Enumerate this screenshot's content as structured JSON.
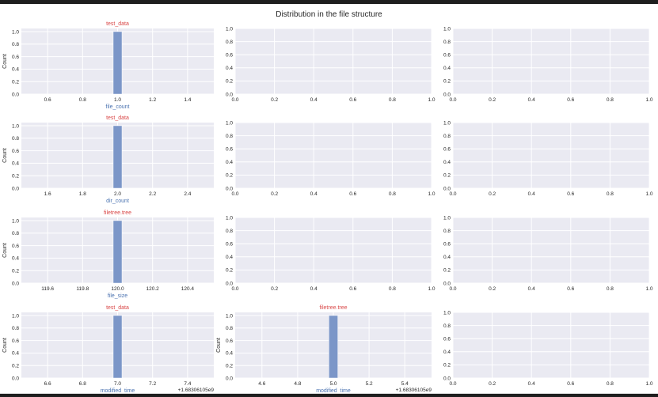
{
  "figure": {
    "title": "Distribution in the file structure"
  },
  "colors": {
    "axes_bg": "#eaeaf2",
    "grid": "#ffffff",
    "bar": "#7b96c8",
    "subplot_title": "#d94848",
    "xlabel": "#4a72b0",
    "tick_text": "#262626"
  },
  "chart_data": [
    {
      "type": "bar",
      "row": 1,
      "col": 1,
      "title": "test_data",
      "xlabel": "file_count",
      "ylabel": "Count",
      "bins": [
        {
          "x0": 0.975,
          "x1": 1.025,
          "count": 1
        }
      ],
      "xlim": [
        0.45,
        1.55
      ],
      "ylim": [
        0,
        1.05
      ],
      "xticks": [
        "0.6",
        "0.8",
        "1.0",
        "1.2",
        "1.4"
      ],
      "xtick_values": [
        0.6,
        0.8,
        1.0,
        1.2,
        1.4
      ],
      "yticks": [
        "0.0",
        "0.2",
        "0.4",
        "0.6",
        "0.8",
        "1.0"
      ],
      "ytick_values": [
        0,
        0.2,
        0.4,
        0.6,
        0.8,
        1.0
      ],
      "offset_text": ""
    },
    {
      "type": "empty",
      "row": 1,
      "col": 2,
      "title": "",
      "xlabel": "",
      "ylabel": "",
      "bins": [],
      "xlim": [
        0,
        1
      ],
      "ylim": [
        0,
        1
      ],
      "xticks": [
        "0.0",
        "0.2",
        "0.4",
        "0.6",
        "0.8",
        "1.0"
      ],
      "xtick_values": [
        0,
        0.2,
        0.4,
        0.6,
        0.8,
        1.0
      ],
      "yticks": [
        "0.0",
        "0.2",
        "0.4",
        "0.6",
        "0.8",
        "1.0"
      ],
      "ytick_values": [
        0,
        0.2,
        0.4,
        0.6,
        0.8,
        1.0
      ],
      "offset_text": ""
    },
    {
      "type": "empty",
      "row": 1,
      "col": 3,
      "title": "",
      "xlabel": "",
      "ylabel": "",
      "bins": [],
      "xlim": [
        0,
        1
      ],
      "ylim": [
        0,
        1
      ],
      "xticks": [
        "0.0",
        "0.2",
        "0.4",
        "0.6",
        "0.8",
        "1.0"
      ],
      "xtick_values": [
        0,
        0.2,
        0.4,
        0.6,
        0.8,
        1.0
      ],
      "yticks": [
        "0.0",
        "0.2",
        "0.4",
        "0.6",
        "0.8",
        "1.0"
      ],
      "ytick_values": [
        0,
        0.2,
        0.4,
        0.6,
        0.8,
        1.0
      ],
      "offset_text": ""
    },
    {
      "type": "bar",
      "row": 2,
      "col": 1,
      "title": "test_data",
      "xlabel": "dir_count",
      "ylabel": "Count",
      "bins": [
        {
          "x0": 1.975,
          "x1": 2.025,
          "count": 1
        }
      ],
      "xlim": [
        1.45,
        2.55
      ],
      "ylim": [
        0,
        1.05
      ],
      "xticks": [
        "1.6",
        "1.8",
        "2.0",
        "2.2",
        "2.4"
      ],
      "xtick_values": [
        1.6,
        1.8,
        2.0,
        2.2,
        2.4
      ],
      "yticks": [
        "0.0",
        "0.2",
        "0.4",
        "0.6",
        "0.8",
        "1.0"
      ],
      "ytick_values": [
        0,
        0.2,
        0.4,
        0.6,
        0.8,
        1.0
      ],
      "offset_text": ""
    },
    {
      "type": "empty",
      "row": 2,
      "col": 2,
      "title": "",
      "xlabel": "",
      "ylabel": "",
      "bins": [],
      "xlim": [
        0,
        1
      ],
      "ylim": [
        0,
        1
      ],
      "xticks": [
        "0.0",
        "0.2",
        "0.4",
        "0.6",
        "0.8",
        "1.0"
      ],
      "xtick_values": [
        0,
        0.2,
        0.4,
        0.6,
        0.8,
        1.0
      ],
      "yticks": [
        "0.0",
        "0.2",
        "0.4",
        "0.6",
        "0.8",
        "1.0"
      ],
      "ytick_values": [
        0,
        0.2,
        0.4,
        0.6,
        0.8,
        1.0
      ],
      "offset_text": ""
    },
    {
      "type": "empty",
      "row": 2,
      "col": 3,
      "title": "",
      "xlabel": "",
      "ylabel": "",
      "bins": [],
      "xlim": [
        0,
        1
      ],
      "ylim": [
        0,
        1
      ],
      "xticks": [
        "0.0",
        "0.2",
        "0.4",
        "0.6",
        "0.8",
        "1.0"
      ],
      "xtick_values": [
        0,
        0.2,
        0.4,
        0.6,
        0.8,
        1.0
      ],
      "yticks": [
        "0.0",
        "0.2",
        "0.4",
        "0.6",
        "0.8",
        "1.0"
      ],
      "ytick_values": [
        0,
        0.2,
        0.4,
        0.6,
        0.8,
        1.0
      ],
      "offset_text": ""
    },
    {
      "type": "bar",
      "row": 3,
      "col": 1,
      "title": "filetree.tree",
      "xlabel": "file_size",
      "ylabel": "Count",
      "bins": [
        {
          "x0": 119.975,
          "x1": 120.025,
          "count": 1
        }
      ],
      "xlim": [
        119.45,
        120.55
      ],
      "ylim": [
        0,
        1.05
      ],
      "xticks": [
        "119.6",
        "119.8",
        "120.0",
        "120.2",
        "120.4"
      ],
      "xtick_values": [
        119.6,
        119.8,
        120.0,
        120.2,
        120.4
      ],
      "yticks": [
        "0.0",
        "0.2",
        "0.4",
        "0.6",
        "0.8",
        "1.0"
      ],
      "ytick_values": [
        0,
        0.2,
        0.4,
        0.6,
        0.8,
        1.0
      ],
      "offset_text": ""
    },
    {
      "type": "empty",
      "row": 3,
      "col": 2,
      "title": "",
      "xlabel": "",
      "ylabel": "",
      "bins": [],
      "xlim": [
        0,
        1
      ],
      "ylim": [
        0,
        1
      ],
      "xticks": [
        "0.0",
        "0.2",
        "0.4",
        "0.6",
        "0.8",
        "1.0"
      ],
      "xtick_values": [
        0,
        0.2,
        0.4,
        0.6,
        0.8,
        1.0
      ],
      "yticks": [
        "0.0",
        "0.2",
        "0.4",
        "0.6",
        "0.8",
        "1.0"
      ],
      "ytick_values": [
        0,
        0.2,
        0.4,
        0.6,
        0.8,
        1.0
      ],
      "offset_text": ""
    },
    {
      "type": "empty",
      "row": 3,
      "col": 3,
      "title": "",
      "xlabel": "",
      "ylabel": "",
      "bins": [],
      "xlim": [
        0,
        1
      ],
      "ylim": [
        0,
        1
      ],
      "xticks": [
        "0.0",
        "0.2",
        "0.4",
        "0.6",
        "0.8",
        "1.0"
      ],
      "xtick_values": [
        0,
        0.2,
        0.4,
        0.6,
        0.8,
        1.0
      ],
      "yticks": [
        "0.0",
        "0.2",
        "0.4",
        "0.6",
        "0.8",
        "1.0"
      ],
      "ytick_values": [
        0,
        0.2,
        0.4,
        0.6,
        0.8,
        1.0
      ],
      "offset_text": ""
    },
    {
      "type": "bar",
      "row": 4,
      "col": 1,
      "title": "test_data",
      "xlabel": "modified_time",
      "ylabel": "Count",
      "bins": [
        {
          "x0": 6.975,
          "x1": 7.025,
          "count": 1
        }
      ],
      "xlim": [
        6.45,
        7.55
      ],
      "ylim": [
        0,
        1.05
      ],
      "xticks": [
        "6.6",
        "6.8",
        "7.0",
        "7.2",
        "7.4"
      ],
      "xtick_values": [
        6.6,
        6.8,
        7.0,
        7.2,
        7.4
      ],
      "yticks": [
        "0.0",
        "0.2",
        "0.4",
        "0.6",
        "0.8",
        "1.0"
      ],
      "ytick_values": [
        0,
        0.2,
        0.4,
        0.6,
        0.8,
        1.0
      ],
      "offset_text": "+1.68306105e9"
    },
    {
      "type": "bar",
      "row": 4,
      "col": 2,
      "title": "filetree.tree",
      "xlabel": "modified_time",
      "ylabel": "Count",
      "bins": [
        {
          "x0": 4.975,
          "x1": 5.025,
          "count": 1
        }
      ],
      "xlim": [
        4.45,
        5.55
      ],
      "ylim": [
        0,
        1.05
      ],
      "xticks": [
        "4.6",
        "4.8",
        "5.0",
        "5.2",
        "5.4"
      ],
      "xtick_values": [
        4.6,
        4.8,
        5.0,
        5.2,
        5.4
      ],
      "yticks": [
        "0.0",
        "0.2",
        "0.4",
        "0.6",
        "0.8",
        "1.0"
      ],
      "ytick_values": [
        0,
        0.2,
        0.4,
        0.6,
        0.8,
        1.0
      ],
      "offset_text": "+1.68306105e9"
    },
    {
      "type": "empty",
      "row": 4,
      "col": 3,
      "title": "",
      "xlabel": "",
      "ylabel": "",
      "bins": [],
      "xlim": [
        0,
        1
      ],
      "ylim": [
        0,
        1
      ],
      "xticks": [
        "0.0",
        "0.2",
        "0.4",
        "0.6",
        "0.8",
        "1.0"
      ],
      "xtick_values": [
        0,
        0.2,
        0.4,
        0.6,
        0.8,
        1.0
      ],
      "yticks": [
        "0.0",
        "0.2",
        "0.4",
        "0.6",
        "0.8",
        "1.0"
      ],
      "ytick_values": [
        0,
        0.2,
        0.4,
        0.6,
        0.8,
        1.0
      ],
      "offset_text": ""
    }
  ]
}
